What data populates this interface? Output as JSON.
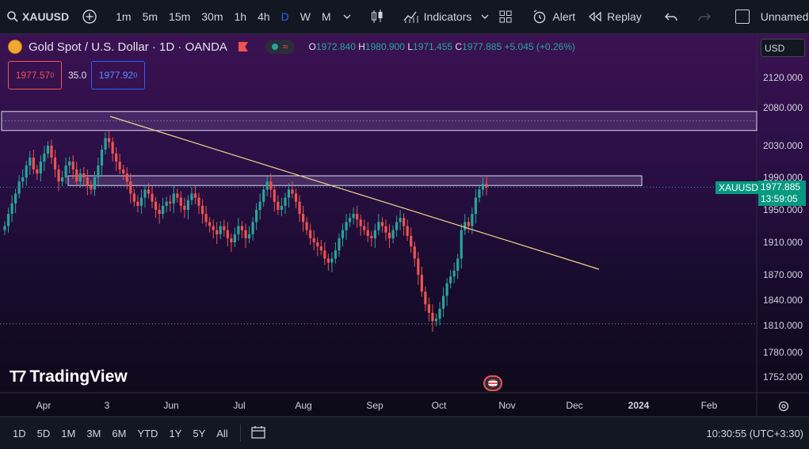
{
  "toolbar": {
    "symbol": "XAUUSD",
    "timeframes": [
      "1m",
      "5m",
      "15m",
      "30m",
      "1h",
      "4h",
      "D",
      "W",
      "M"
    ],
    "active_timeframe": "D",
    "indicators_label": "Indicators",
    "alert_label": "Alert",
    "replay_label": "Replay",
    "layout_name": "Unnamed"
  },
  "legend": {
    "title": "Gold Spot / U.S. Dollar · 1D · OANDA",
    "open_label": "O",
    "open": "1972.840",
    "high_label": "H",
    "high": "1980.900",
    "low_label": "L",
    "low": "1971.455",
    "close_label": "C",
    "close": "1977.885",
    "change": "+5.045 (+0.26%)",
    "sell_price": "1977.57",
    "sell_price_sup": "0",
    "spread": "35.0",
    "buy_price": "1977.92",
    "buy_price_sup": "0"
  },
  "currency": "USD",
  "price_axis": [
    "2120.000",
    "2080.000",
    "2030.000",
    "1990.000",
    "1950.000",
    "1910.000",
    "1870.000",
    "1840.000",
    "1810.000",
    "1780.000",
    "1752.000"
  ],
  "time_axis": [
    "Apr",
    "3",
    "Jun",
    "Jul",
    "Aug",
    "Sep",
    "Oct",
    "Nov",
    "Dec",
    "2024",
    "Feb"
  ],
  "last_price_tag": {
    "symbol": "XAUUSD",
    "price": "1977.885",
    "countdown": "13:59:05"
  },
  "watermark": "TradingView",
  "bottom": {
    "ranges": [
      "1D",
      "5D",
      "1M",
      "3M",
      "6M",
      "YTD",
      "1Y",
      "5Y",
      "All"
    ],
    "clock": "10:30:55 (UTC+3:30)"
  },
  "colors": {
    "up": "#26a69a",
    "down": "#ef5350",
    "trendline": "#f0d58a",
    "accent": "#2962ff"
  },
  "chart_data": {
    "type": "candlestick",
    "price_range": [
      1752,
      2120
    ],
    "resistance_zone": [
      2050,
      2075
    ],
    "resistance_box": [
      1980,
      1992
    ],
    "support_line": 1812,
    "trendline": {
      "from": [
        "May 3",
        2068
      ],
      "to": [
        "Nov 10",
        1878
      ]
    },
    "closes": [
      1930,
      1945,
      1958,
      1970,
      1985,
      1990,
      2005,
      2015,
      2000,
      1995,
      2010,
      2020,
      2030,
      2015,
      2000,
      1985,
      1990,
      2005,
      2010,
      2000,
      1985,
      1995,
      1990,
      1980,
      1975,
      1990,
      2005,
      2025,
      2040,
      2035,
      2020,
      2010,
      2000,
      1995,
      1985,
      1970,
      1960,
      1955,
      1965,
      1975,
      1970,
      1960,
      1950,
      1945,
      1955,
      1960,
      1958,
      1970,
      1965,
      1955,
      1950,
      1962,
      1970,
      1965,
      1955,
      1945,
      1935,
      1930,
      1925,
      1920,
      1930,
      1925,
      1915,
      1910,
      1920,
      1930,
      1925,
      1915,
      1920,
      1935,
      1950,
      1960,
      1975,
      1985,
      1975,
      1960,
      1950,
      1955,
      1965,
      1975,
      1970,
      1960,
      1945,
      1935,
      1925,
      1915,
      1910,
      1905,
      1900,
      1890,
      1885,
      1890,
      1900,
      1915,
      1925,
      1935,
      1940,
      1945,
      1938,
      1930,
      1925,
      1918,
      1915,
      1925,
      1935,
      1930,
      1922,
      1915,
      1925,
      1935,
      1940,
      1930,
      1918,
      1905,
      1890,
      1870,
      1850,
      1835,
      1825,
      1815,
      1818,
      1830,
      1845,
      1860,
      1868,
      1875,
      1890,
      1925,
      1935,
      1930,
      1945,
      1965,
      1975,
      1982,
      1978
    ]
  }
}
